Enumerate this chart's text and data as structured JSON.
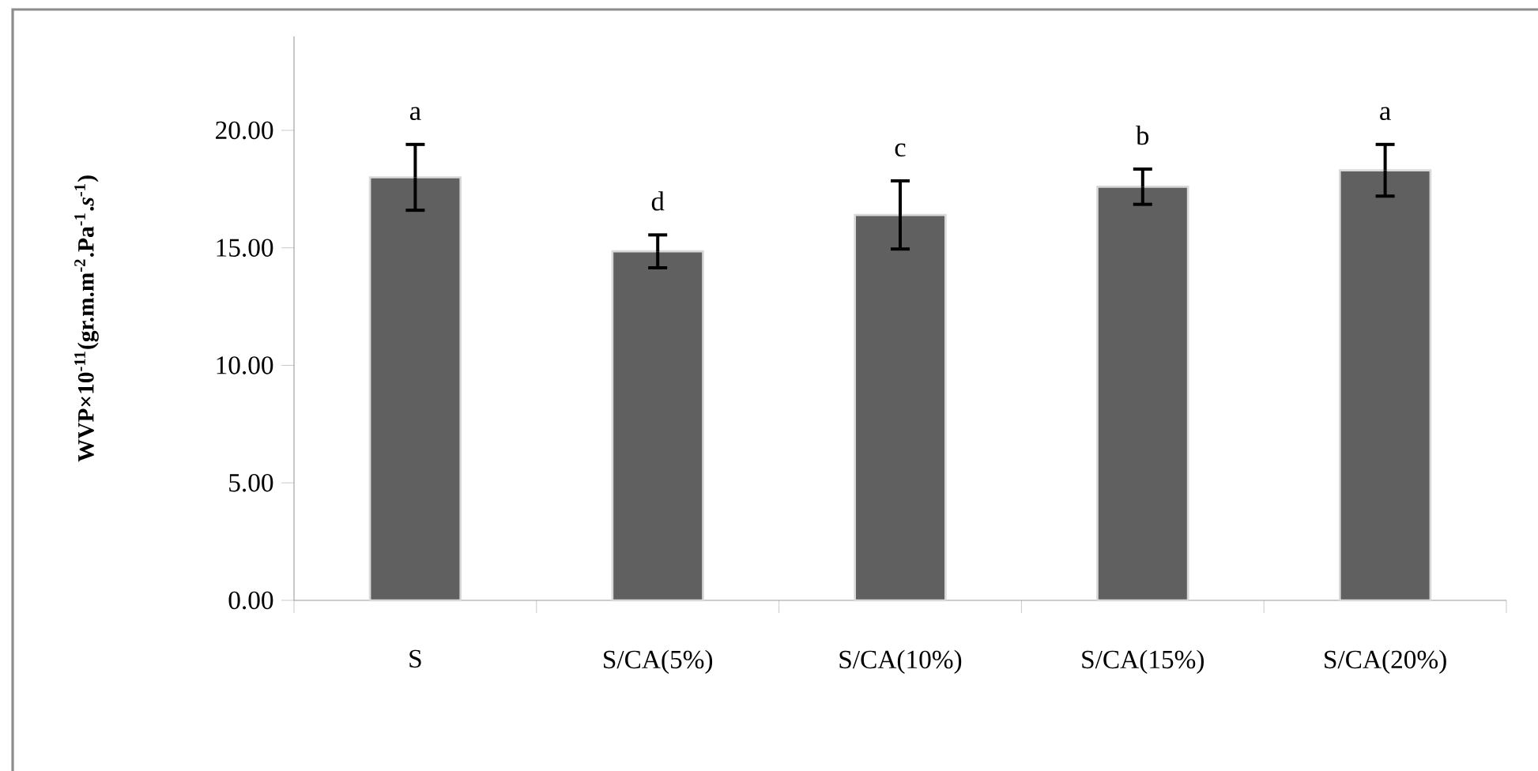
{
  "chart_data": {
    "type": "bar",
    "ylabel": "WVP×10$^{-11}$(gr.m.m$^{-2}$.Pa$^{-1}$.*s*$^{-1}$)",
    "categories": [
      "S",
      "S/CA(5%)",
      "S/CA(10%)",
      "S/CA(15%)",
      "S/CA(20%)"
    ],
    "values": [
      18.0,
      14.85,
      16.4,
      17.6,
      18.3
    ],
    "errors": [
      1.4,
      0.7,
      1.45,
      0.75,
      1.1
    ],
    "color": "#606060",
    "ylim": [
      0,
      24
    ],
    "yticks": [
      {
        "value": 0,
        "label": "0.00"
      },
      {
        "value": 5,
        "label": "5.00"
      },
      {
        "value": 10,
        "label": "10.00"
      },
      {
        "value": 15,
        "label": "15.00"
      },
      {
        "value": 20,
        "label": "20.00"
      }
    ],
    "grid": false,
    "annotations": [
      "a",
      "d",
      "c",
      "b",
      "a"
    ]
  }
}
